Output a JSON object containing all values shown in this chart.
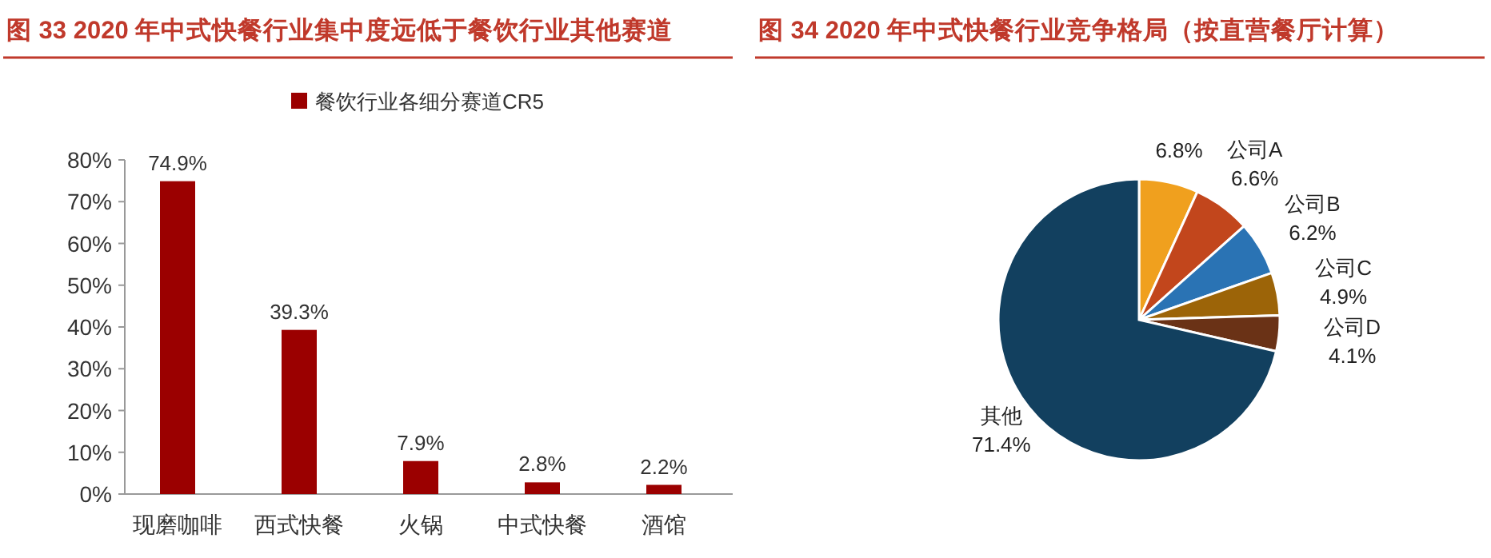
{
  "chart_data": [
    {
      "type": "bar",
      "title": "图 33 2020 年中式快餐行业集中度远低于餐饮行业其他赛道",
      "categories": [
        "现磨咖啡",
        "西式快餐",
        "火锅",
        "中式快餐",
        "酒馆"
      ],
      "series": [
        {
          "name": "餐饮行业各细分赛道CR5",
          "color": "#9b0000",
          "values": [
            74.9,
            39.3,
            7.9,
            2.8,
            2.2
          ],
          "value_labels": [
            "74.9%",
            "39.3%",
            "7.9%",
            "2.8%",
            "2.2%"
          ]
        }
      ],
      "ylim": [
        0,
        80
      ],
      "yticks": [
        {
          "value": 0,
          "label": "0%"
        },
        {
          "value": 10,
          "label": "10%"
        },
        {
          "value": 20,
          "label": "20%"
        },
        {
          "value": 30,
          "label": "30%"
        },
        {
          "value": 40,
          "label": "40%"
        },
        {
          "value": 50,
          "label": "50%"
        },
        {
          "value": 60,
          "label": "60%"
        },
        {
          "value": 70,
          "label": "70%"
        },
        {
          "value": 80,
          "label": "80%"
        }
      ],
      "legend": "top",
      "grid": false
    },
    {
      "type": "pie",
      "title": "图 34 2020 年中式快餐行业竞争格局（按直营餐厅计算）",
      "categories": [
        null,
        "公司A",
        "公司B",
        "公司C",
        "公司D",
        "其他"
      ],
      "values": [
        6.8,
        6.6,
        6.2,
        4.9,
        4.1,
        71.4
      ],
      "value_labels": [
        "6.8%",
        "6.6%",
        "6.2%",
        "4.9%",
        "4.1%",
        "71.4%"
      ],
      "colors": [
        "#f0a01e",
        "#c2461c",
        "#2a73b4",
        "#9c6408",
        "#6a3216",
        "#12405f"
      ]
    }
  ]
}
